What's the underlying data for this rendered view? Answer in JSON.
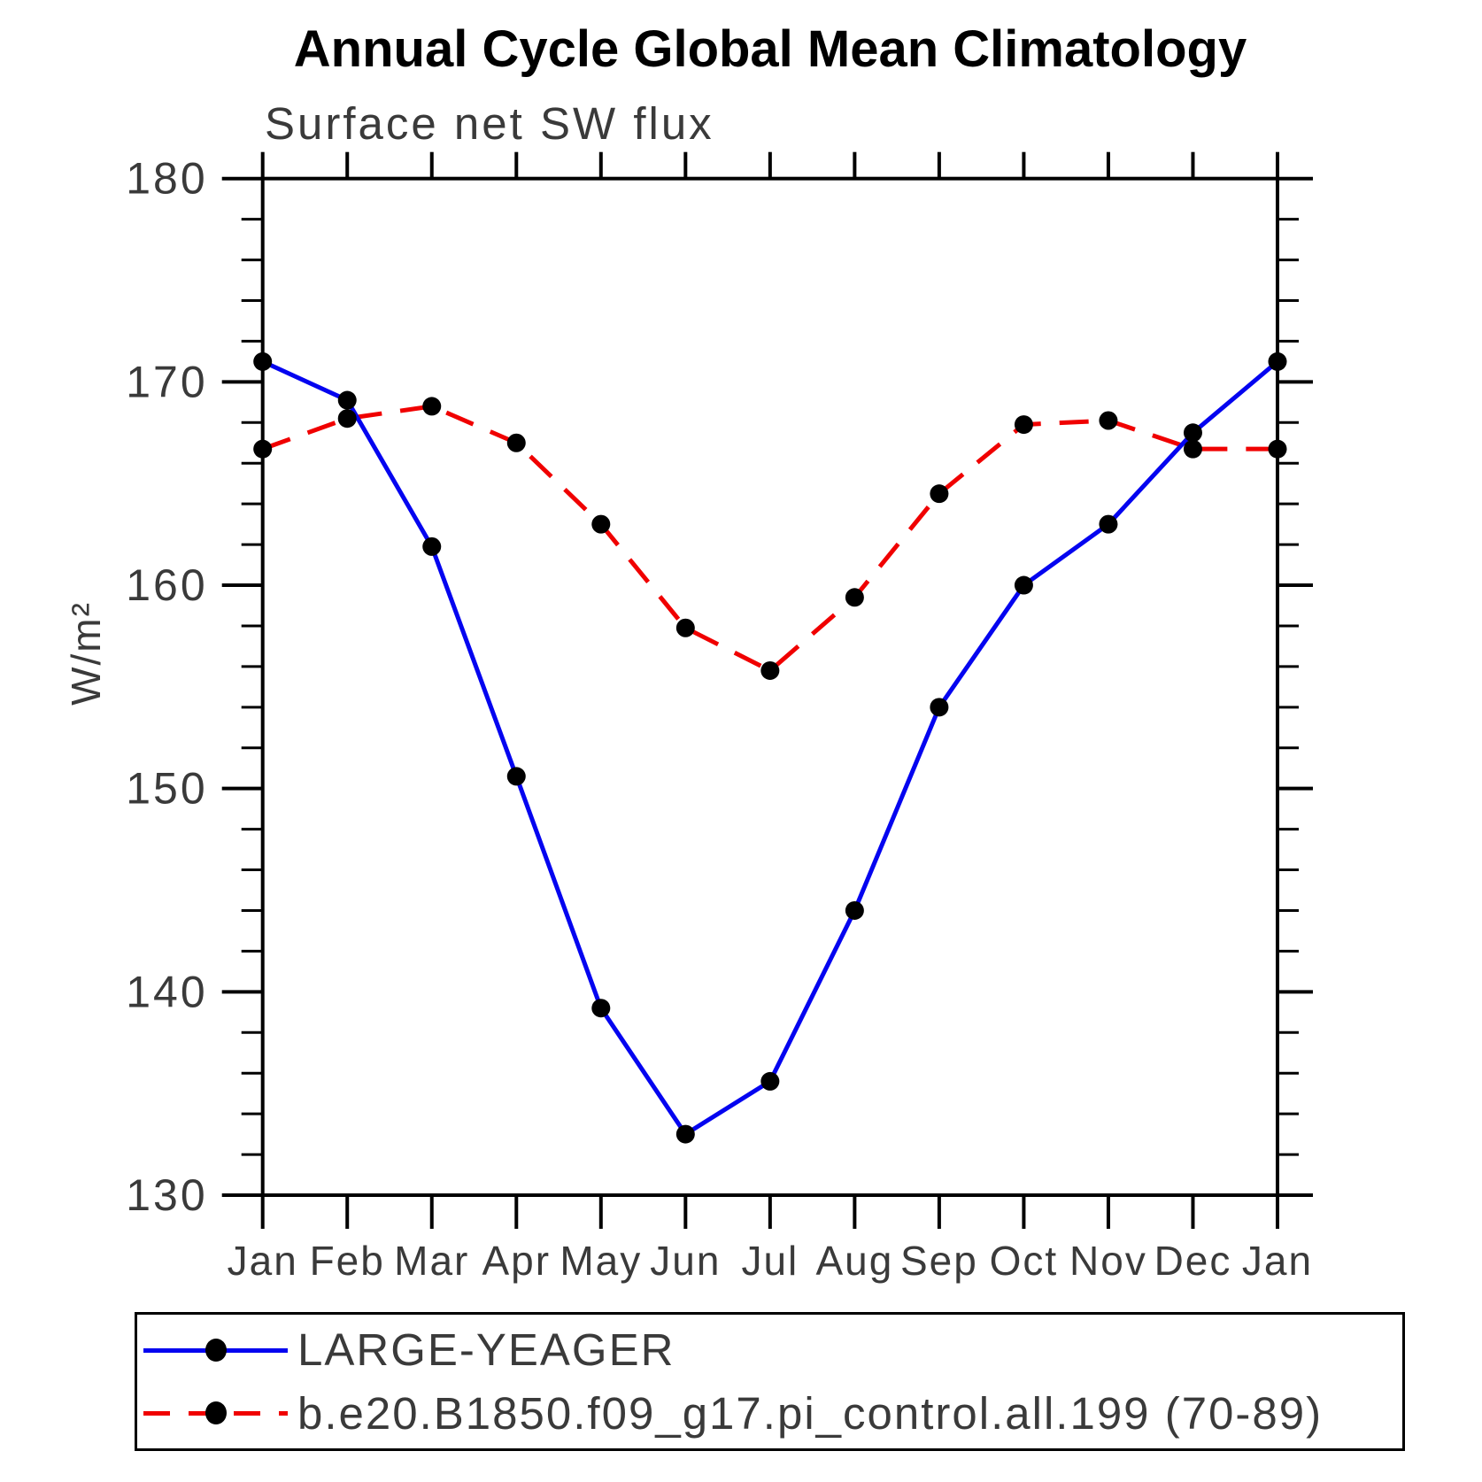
{
  "title": "Annual Cycle Global Mean Climatology",
  "subtitle": "Surface net SW flux",
  "y_axis_label": "W/m²",
  "chart_data": {
    "type": "line",
    "categories": [
      "Jan",
      "Feb",
      "Mar",
      "Apr",
      "May",
      "Jun",
      "Jul",
      "Aug",
      "Sep",
      "Oct",
      "Nov",
      "Dec",
      "Jan"
    ],
    "xlabel": "",
    "ylabel": "W/m²",
    "ylim": [
      130,
      180
    ],
    "ytick_major": [
      130,
      140,
      150,
      160,
      170,
      180
    ],
    "ytick_minor_step": 2,
    "grid": false,
    "legend_position": "bottom-box",
    "series": [
      {
        "name": "LARGE-YEAGER",
        "color": "#0404f0",
        "line_style": "solid",
        "marker": "circle",
        "marker_color": "#000000",
        "values": [
          171.0,
          169.1,
          161.9,
          150.6,
          139.2,
          133.0,
          135.6,
          144.0,
          154.0,
          160.0,
          163.0,
          167.5,
          171.0
        ]
      },
      {
        "name": "b.e20.B1850.f09_g17.pi_control.all.199 (70-89)",
        "color": "#f00000",
        "line_style": "dashed",
        "marker": "circle",
        "marker_color": "#000000",
        "values": [
          166.7,
          168.2,
          168.8,
          167.0,
          163.0,
          157.9,
          155.8,
          159.4,
          164.5,
          167.9,
          168.1,
          166.7,
          166.7
        ]
      }
    ]
  }
}
